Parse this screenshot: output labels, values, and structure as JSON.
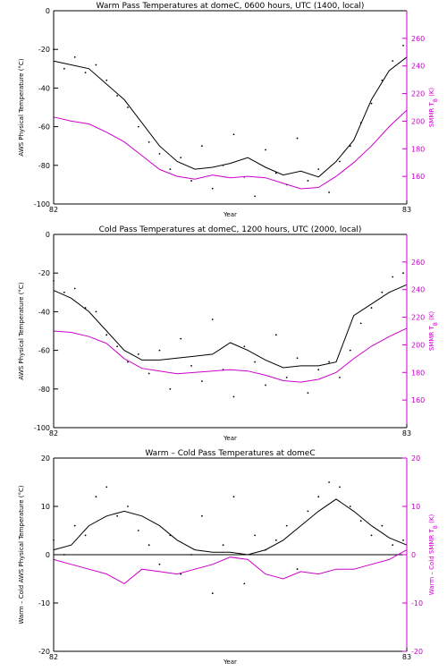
{
  "colors": {
    "axis": "#000000",
    "left_series": "#000000",
    "right_series": "#cc00cc",
    "right_axis": "#cc00cc"
  },
  "chart_data": [
    {
      "type": "line",
      "title": "Warm Pass Temperatures at domeC, 0600 hours, UTC (1400, local)",
      "xlabel": "Year",
      "ylabel": "AWS Physical Temperature (°C)",
      "y2label": "SMMR T_B (K)",
      "xlim": [
        82,
        83
      ],
      "xticks": [
        "82",
        "83"
      ],
      "ylim": [
        -100,
        0
      ],
      "yticks": [
        "0",
        "-20",
        "-40",
        "-60",
        "-80",
        "-100"
      ],
      "y2lim": [
        140,
        280
      ],
      "y2ticks": [
        "160",
        "180",
        "200",
        "220",
        "240",
        "260"
      ],
      "zero_line": false,
      "series": [
        {
          "axis": "left",
          "style": "line",
          "x": [
            82.0,
            82.05,
            82.1,
            82.15,
            82.2,
            82.25,
            82.3,
            82.35,
            82.4,
            82.45,
            82.5,
            82.55,
            82.6,
            82.65,
            82.7,
            82.75,
            82.8,
            82.85,
            82.9,
            82.95,
            83.0
          ],
          "values": [
            -26,
            -28,
            -30,
            -38,
            -46,
            -58,
            -70,
            -78,
            -82,
            -81,
            -79,
            -76,
            -81,
            -85,
            -83,
            -86,
            -78,
            -67,
            -46,
            -31,
            -24
          ]
        },
        {
          "axis": "left",
          "style": "dots",
          "x": [
            82.0,
            82.03,
            82.06,
            82.09,
            82.12,
            82.15,
            82.18,
            82.21,
            82.24,
            82.27,
            82.3,
            82.33,
            82.36,
            82.39,
            82.42,
            82.45,
            82.48,
            82.51,
            82.54,
            82.57,
            82.6,
            82.63,
            82.66,
            82.69,
            82.72,
            82.75,
            82.78,
            82.81,
            82.84,
            82.87,
            82.9,
            82.93,
            82.96,
            82.99
          ],
          "values": [
            -20,
            -30,
            -24,
            -32,
            -28,
            -36,
            -44,
            -50,
            -60,
            -68,
            -74,
            -82,
            -76,
            -88,
            -70,
            -92,
            -80,
            -64,
            -86,
            -96,
            -72,
            -84,
            -90,
            -66,
            -88,
            -82,
            -94,
            -78,
            -70,
            -58,
            -48,
            -36,
            -26,
            -18
          ]
        },
        {
          "axis": "right",
          "style": "line",
          "x": [
            82.0,
            82.05,
            82.1,
            82.15,
            82.2,
            82.25,
            82.3,
            82.35,
            82.4,
            82.45,
            82.5,
            82.55,
            82.6,
            82.65,
            82.7,
            82.75,
            82.8,
            82.85,
            82.9,
            82.95,
            83.0
          ],
          "values": [
            203,
            200,
            198,
            192,
            185,
            175,
            165,
            160,
            158,
            161,
            159,
            160,
            159,
            155,
            151,
            152,
            160,
            170,
            182,
            196,
            208
          ]
        }
      ]
    },
    {
      "type": "line",
      "title": "Cold Pass Temperatures at domeC, 1200 hours, UTC (2000, local)",
      "xlabel": "Year",
      "ylabel": "AWS Physical Temperature (°C)",
      "y2label": "SMMR T_B (K)",
      "xlim": [
        82,
        83
      ],
      "xticks": [
        "82",
        "83"
      ],
      "ylim": [
        -100,
        0
      ],
      "yticks": [
        "0",
        "-20",
        "-40",
        "-60",
        "-80",
        "-100"
      ],
      "y2lim": [
        140,
        280
      ],
      "y2ticks": [
        "160",
        "180",
        "200",
        "220",
        "240",
        "260"
      ],
      "zero_line": false,
      "series": [
        {
          "axis": "left",
          "style": "line",
          "x": [
            82.0,
            82.05,
            82.1,
            82.15,
            82.2,
            82.25,
            82.3,
            82.35,
            82.4,
            82.45,
            82.5,
            82.55,
            82.6,
            82.65,
            82.7,
            82.75,
            82.8,
            82.85,
            82.9,
            82.95,
            83.0
          ],
          "values": [
            -29,
            -33,
            -40,
            -50,
            -60,
            -65,
            -65,
            -64,
            -63,
            -62,
            -56,
            -60,
            -65,
            -69,
            -68,
            -68,
            -66,
            -42,
            -36,
            -30,
            -26
          ]
        },
        {
          "axis": "left",
          "style": "dots",
          "x": [
            82.0,
            82.03,
            82.06,
            82.09,
            82.12,
            82.15,
            82.18,
            82.21,
            82.24,
            82.27,
            82.3,
            82.33,
            82.36,
            82.39,
            82.42,
            82.45,
            82.48,
            82.51,
            82.54,
            82.57,
            82.6,
            82.63,
            82.66,
            82.69,
            82.72,
            82.75,
            82.78,
            82.81,
            82.84,
            82.87,
            82.9,
            82.93,
            82.96,
            82.99
          ],
          "values": [
            -24,
            -30,
            -28,
            -38,
            -40,
            -52,
            -58,
            -66,
            -62,
            -72,
            -60,
            -80,
            -54,
            -68,
            -76,
            -44,
            -70,
            -84,
            -58,
            -66,
            -78,
            -52,
            -74,
            -64,
            -82,
            -70,
            -66,
            -74,
            -60,
            -46,
            -38,
            -30,
            -22,
            -20
          ]
        },
        {
          "axis": "right",
          "style": "line",
          "x": [
            82.0,
            82.05,
            82.1,
            82.15,
            82.2,
            82.25,
            82.3,
            82.35,
            82.4,
            82.45,
            82.5,
            82.55,
            82.6,
            82.65,
            82.7,
            82.75,
            82.8,
            82.85,
            82.9,
            82.95,
            83.0
          ],
          "values": [
            210,
            209,
            206,
            201,
            190,
            183,
            181,
            179,
            180,
            181,
            182,
            181,
            178,
            174,
            173,
            175,
            180,
            190,
            199,
            206,
            212
          ]
        }
      ]
    },
    {
      "type": "line",
      "title": "Warm – Cold Pass Temperatures at domeC",
      "xlabel": "Year",
      "ylabel": "Warm – Cold AWS Physical Temperature (°C)",
      "y2label": "Warm – Cold SMMR T_B (K)",
      "xlim": [
        82,
        83
      ],
      "xticks": [
        "82",
        "83"
      ],
      "ylim": [
        -20,
        20
      ],
      "yticks": [
        "20",
        "10",
        "0",
        "-10",
        "-20"
      ],
      "y2lim": [
        -20,
        20
      ],
      "y2ticks": [
        "20",
        "10",
        "0",
        "-10",
        "-20"
      ],
      "zero_line": true,
      "series": [
        {
          "axis": "left",
          "style": "line",
          "x": [
            82.0,
            82.05,
            82.1,
            82.15,
            82.2,
            82.25,
            82.3,
            82.35,
            82.4,
            82.45,
            82.5,
            82.55,
            82.6,
            82.65,
            82.7,
            82.75,
            82.8,
            82.85,
            82.9,
            82.95,
            83.0
          ],
          "values": [
            1,
            2,
            6,
            8,
            9,
            8,
            6,
            3,
            1,
            0.5,
            0.5,
            0,
            1,
            3,
            6,
            9,
            11.5,
            9,
            6,
            3.5,
            2
          ]
        },
        {
          "axis": "left",
          "style": "dots",
          "x": [
            82.0,
            82.03,
            82.06,
            82.09,
            82.12,
            82.15,
            82.18,
            82.21,
            82.24,
            82.27,
            82.3,
            82.33,
            82.36,
            82.39,
            82.42,
            82.45,
            82.48,
            82.51,
            82.54,
            82.57,
            82.6,
            82.63,
            82.66,
            82.69,
            82.72,
            82.75,
            82.78,
            82.81,
            82.84,
            82.87,
            82.9,
            82.93,
            82.96,
            82.99
          ],
          "values": [
            3,
            0,
            6,
            4,
            12,
            14,
            8,
            10,
            5,
            2,
            -2,
            4,
            -4,
            0,
            8,
            -8,
            2,
            12,
            -6,
            4,
            1,
            3,
            6,
            -3,
            9,
            12,
            15,
            14,
            10,
            7,
            4,
            6,
            2,
            3
          ]
        },
        {
          "axis": "right",
          "style": "line",
          "x": [
            82.0,
            82.05,
            82.1,
            82.15,
            82.2,
            82.25,
            82.3,
            82.35,
            82.4,
            82.45,
            82.5,
            82.55,
            82.6,
            82.65,
            82.7,
            82.75,
            82.8,
            82.85,
            82.9,
            82.95,
            83.0
          ],
          "values": [
            -1,
            -2,
            -3,
            -4,
            -6,
            -3,
            -3.5,
            -4,
            -3,
            -2,
            -0.5,
            -1,
            -4,
            -5,
            -3.5,
            -4,
            -3,
            -3,
            -2,
            -1,
            1
          ]
        }
      ]
    }
  ]
}
